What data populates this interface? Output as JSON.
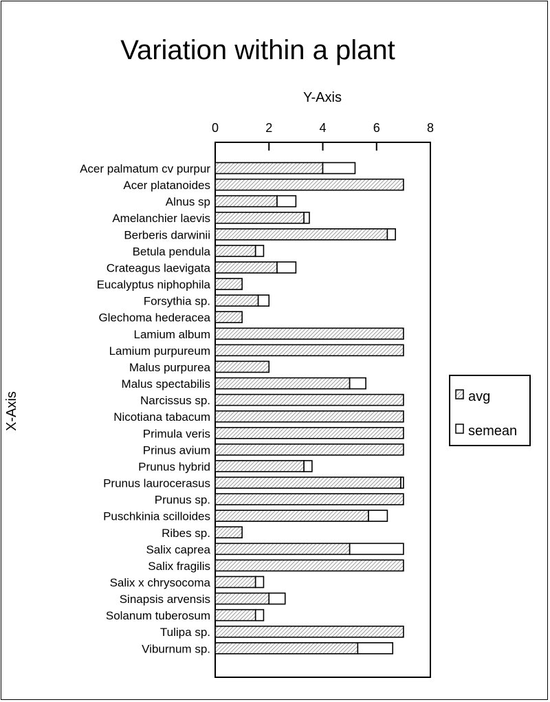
{
  "chart_data": {
    "type": "bar",
    "orientation": "horizontal",
    "title": "Variation within a plant",
    "xlabel": "Y-Axis",
    "ylabel": "X-Axis",
    "xlim": [
      0,
      8
    ],
    "x_ticks": [
      "0",
      "2",
      "4",
      "6",
      "8"
    ],
    "stacked": true,
    "grid": false,
    "legend_position": "right",
    "categories": [
      "Acer palmatum cv purpur",
      "Acer platanoides",
      "Alnus sp",
      "Amelanchier laevis",
      "Berberis darwinii",
      "Betula pendula",
      "Crateagus laevigata",
      "Eucalyptus niphophila",
      "Forsythia sp.",
      "Glechoma hederacea",
      "Lamium album",
      "Lamium purpureum",
      "Malus purpurea",
      "Malus spectabilis",
      "Narcissus sp.",
      "Nicotiana tabacum",
      "Primula veris",
      "Prinus avium",
      "Prunus hybrid",
      "Prunus laurocerasus",
      "Prunus sp.",
      "Puschkinia scilloides",
      "Ribes sp.",
      "Salix caprea",
      "Salix fragilis",
      "Salix x chrysocoma",
      "Sinapsis arvensis",
      "Solanum tuberosum",
      "Tulipa sp.",
      "Viburnum sp."
    ],
    "series": [
      {
        "name": "avg",
        "pattern": "hatched",
        "values": [
          4.0,
          7.0,
          2.3,
          3.3,
          6.4,
          1.5,
          2.3,
          1.0,
          1.6,
          1.0,
          7.0,
          7.0,
          2.0,
          5.0,
          7.0,
          7.0,
          7.0,
          7.0,
          3.3,
          6.9,
          7.0,
          5.7,
          1.0,
          5.0,
          7.0,
          1.5,
          2.0,
          1.5,
          7.0,
          5.3
        ]
      },
      {
        "name": "semean",
        "pattern": "open",
        "values": [
          1.2,
          0.0,
          0.7,
          0.2,
          0.3,
          0.3,
          0.7,
          0.0,
          0.4,
          0.0,
          0.0,
          0.0,
          0.0,
          0.6,
          0.0,
          0.0,
          0.0,
          0.0,
          0.3,
          0.1,
          0.0,
          0.7,
          0.0,
          2.0,
          0.0,
          0.3,
          0.6,
          0.3,
          0.0,
          1.3
        ]
      }
    ]
  }
}
